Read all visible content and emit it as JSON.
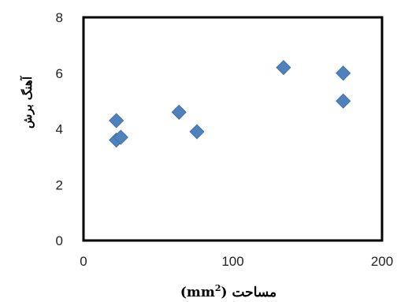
{
  "chart_data": {
    "type": "scatter",
    "title": "",
    "xlabel": "مساحت (mm",
    "xlabel_superscript": "2",
    "xlabel_suffix": ")",
    "ylabel": "آهنگ برش",
    "xlim": [
      0,
      200
    ],
    "ylim": [
      0,
      8
    ],
    "x_ticks": [
      "0",
      "100",
      "200"
    ],
    "y_ticks": [
      "0",
      "2",
      "4",
      "6",
      "8"
    ],
    "grid": false,
    "legend": "none",
    "marker": "diamond",
    "colors": {
      "marker": "#4F81BD",
      "plot_border": "#000000"
    },
    "series": [
      {
        "points": [
          {
            "x": 22,
            "y": 4.3
          },
          {
            "x": 22,
            "y": 3.6
          },
          {
            "x": 25,
            "y": 3.7
          },
          {
            "x": 64,
            "y": 4.6
          },
          {
            "x": 76,
            "y": 3.9
          },
          {
            "x": 134,
            "y": 6.2
          },
          {
            "x": 174,
            "y": 6.0
          },
          {
            "x": 174,
            "y": 5.0
          }
        ]
      }
    ]
  }
}
